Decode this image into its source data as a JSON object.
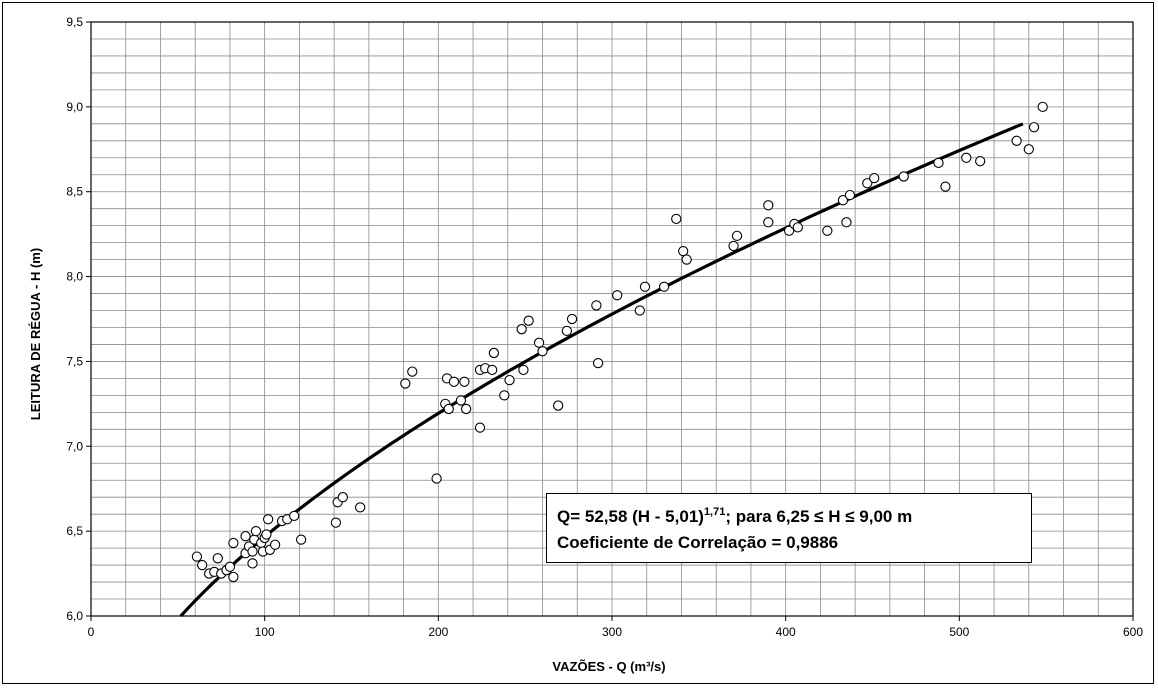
{
  "chart_data": {
    "type": "scatter",
    "xlabel": "VAZÕES - Q (m³/s)",
    "ylabel": "LEITURA DE RÉGUA  - H (m)",
    "xlim": [
      0,
      600
    ],
    "ylim": [
      6.0,
      9.5
    ],
    "x_ticks": [
      "0",
      "100",
      "200",
      "300",
      "400",
      "500",
      "600"
    ],
    "y_ticks": [
      "6,0",
      "6,5",
      "7,0",
      "7,5",
      "8,0",
      "8,5",
      "9,0",
      "9,5"
    ],
    "x_tick_values": [
      0,
      100,
      200,
      300,
      400,
      500,
      600
    ],
    "y_tick_values": [
      6.0,
      6.5,
      7.0,
      7.5,
      8.0,
      8.5,
      9.0,
      9.5
    ],
    "grid": true,
    "minor_grid_x_step": 20,
    "minor_grid_y_step": 0.1,
    "points": [
      [
        61,
        6.35
      ],
      [
        64,
        6.3
      ],
      [
        68,
        6.25
      ],
      [
        71,
        6.26
      ],
      [
        73,
        6.34
      ],
      [
        75,
        6.25
      ],
      [
        78,
        6.27
      ],
      [
        80,
        6.29
      ],
      [
        82,
        6.23
      ],
      [
        82,
        6.43
      ],
      [
        89,
        6.37
      ],
      [
        89,
        6.47
      ],
      [
        91,
        6.41
      ],
      [
        93,
        6.31
      ],
      [
        93,
        6.38
      ],
      [
        94,
        6.45
      ],
      [
        95,
        6.5
      ],
      [
        98,
        6.43
      ],
      [
        99,
        6.38
      ],
      [
        100,
        6.46
      ],
      [
        101,
        6.48
      ],
      [
        102,
        6.57
      ],
      [
        103,
        6.39
      ],
      [
        106,
        6.42
      ],
      [
        110,
        6.56
      ],
      [
        113,
        6.57
      ],
      [
        117,
        6.59
      ],
      [
        121,
        6.45
      ],
      [
        141,
        6.55
      ],
      [
        142,
        6.67
      ],
      [
        145,
        6.7
      ],
      [
        155,
        6.64
      ],
      [
        181,
        7.37
      ],
      [
        185,
        7.44
      ],
      [
        199,
        6.81
      ],
      [
        204,
        7.25
      ],
      [
        205,
        7.4
      ],
      [
        206,
        7.22
      ],
      [
        209,
        7.38
      ],
      [
        213,
        7.27
      ],
      [
        215,
        7.38
      ],
      [
        216,
        7.22
      ],
      [
        224,
        7.45
      ],
      [
        224,
        7.11
      ],
      [
        227,
        7.46
      ],
      [
        231,
        7.45
      ],
      [
        232,
        7.55
      ],
      [
        238,
        7.3
      ],
      [
        241,
        7.39
      ],
      [
        248,
        7.69
      ],
      [
        249,
        7.45
      ],
      [
        252,
        7.74
      ],
      [
        258,
        7.61
      ],
      [
        260,
        7.56
      ],
      [
        269,
        7.24
      ],
      [
        274,
        7.68
      ],
      [
        277,
        7.75
      ],
      [
        291,
        7.83
      ],
      [
        292,
        7.49
      ],
      [
        303,
        7.89
      ],
      [
        316,
        7.8
      ],
      [
        319,
        7.94
      ],
      [
        330,
        7.94
      ],
      [
        337,
        8.34
      ],
      [
        341,
        8.15
      ],
      [
        343,
        8.1
      ],
      [
        370,
        8.18
      ],
      [
        372,
        8.24
      ],
      [
        390,
        8.42
      ],
      [
        390,
        8.32
      ],
      [
        402,
        8.27
      ],
      [
        405,
        8.31
      ],
      [
        407,
        8.29
      ],
      [
        424,
        8.27
      ],
      [
        433,
        8.45
      ],
      [
        435,
        8.32
      ],
      [
        437,
        8.48
      ],
      [
        447,
        8.55
      ],
      [
        451,
        8.58
      ],
      [
        468,
        8.59
      ],
      [
        488,
        8.67
      ],
      [
        492,
        8.53
      ],
      [
        504,
        8.7
      ],
      [
        512,
        8.68
      ],
      [
        533,
        8.8
      ],
      [
        540,
        8.75
      ],
      [
        543,
        8.88
      ],
      [
        548,
        9.0
      ]
    ],
    "fit": {
      "a": 52.58,
      "h0": 5.01,
      "n": 1.71,
      "h_min": 6.0,
      "h_max": 8.9
    },
    "annotation": {
      "line1_prefix": "Q= 52,58 (H - 5,01)",
      "line1_sup": "1,71",
      "line1_suffix": "; para 6,25 ≤ H ≤  9,00 m",
      "line2": "Coeficiente de Correlação = 0,9886"
    }
  }
}
